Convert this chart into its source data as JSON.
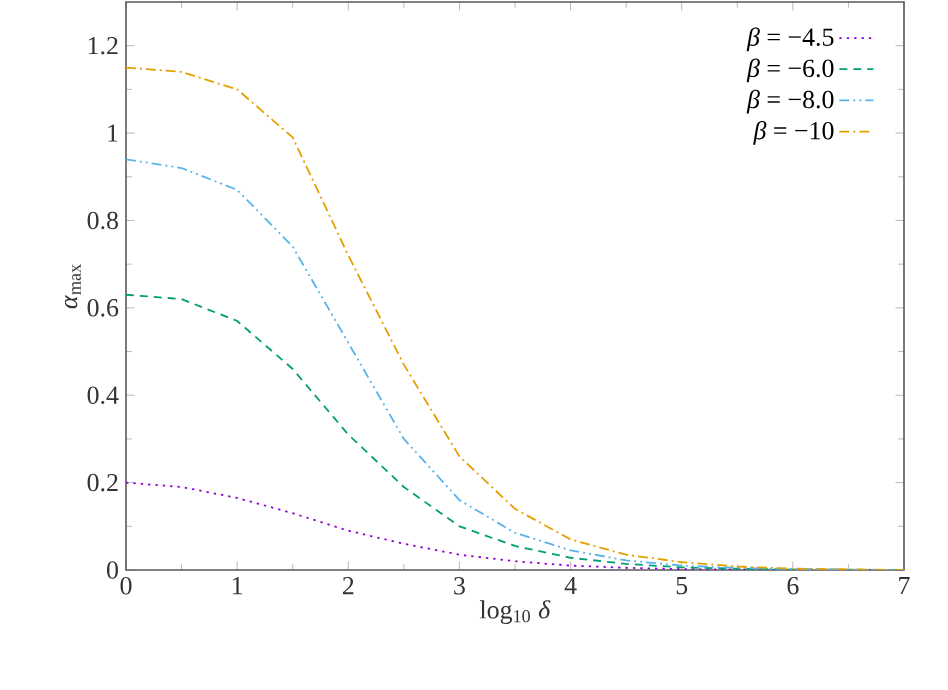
{
  "chart_data": {
    "type": "line",
    "xlabel": "log$_{10}$ *δ*",
    "ylabel": "*α*$_{max}$",
    "xlim": [
      0,
      7
    ],
    "ylim": [
      0,
      1.3
    ],
    "xticks": [
      0,
      1,
      2,
      3,
      4,
      5,
      6,
      7
    ],
    "yticks": [
      0,
      0.2,
      0.4,
      0.6,
      0.8,
      1,
      1.2
    ],
    "grid": false,
    "legend": "top right",
    "marker": "none",
    "x": [
      0,
      0.5,
      1,
      1.5,
      2,
      2.5,
      3,
      3.5,
      4,
      4.5,
      5,
      5.5,
      6,
      7
    ],
    "series": [
      {
        "name": "*β* = −4.5",
        "color": "#9400d3",
        "line_style": "dotted",
        "values": [
          0.2,
          0.19,
          0.165,
          0.13,
          0.09,
          0.06,
          0.035,
          0.02,
          0.01,
          0.005,
          0.002,
          0.001,
          0,
          0
        ]
      },
      {
        "name": "*β* = −6.0",
        "color": "#009e73",
        "line_style": "dashed",
        "values": [
          0.63,
          0.62,
          0.57,
          0.46,
          0.31,
          0.19,
          0.1,
          0.055,
          0.028,
          0.014,
          0.006,
          0.003,
          0.001,
          0
        ]
      },
      {
        "name": "*β* = −8.0",
        "color": "#56b4e9",
        "line_style": "dashdotdot",
        "values": [
          0.94,
          0.92,
          0.87,
          0.74,
          0.52,
          0.3,
          0.16,
          0.085,
          0.045,
          0.022,
          0.01,
          0.005,
          0.002,
          0
        ]
      },
      {
        "name": "*β* = −10",
        "color": "#e69f00",
        "line_style": "dashdot",
        "values": [
          1.15,
          1.14,
          1.1,
          0.99,
          0.72,
          0.47,
          0.26,
          0.14,
          0.07,
          0.035,
          0.018,
          0.008,
          0.003,
          0
        ]
      }
    ]
  }
}
